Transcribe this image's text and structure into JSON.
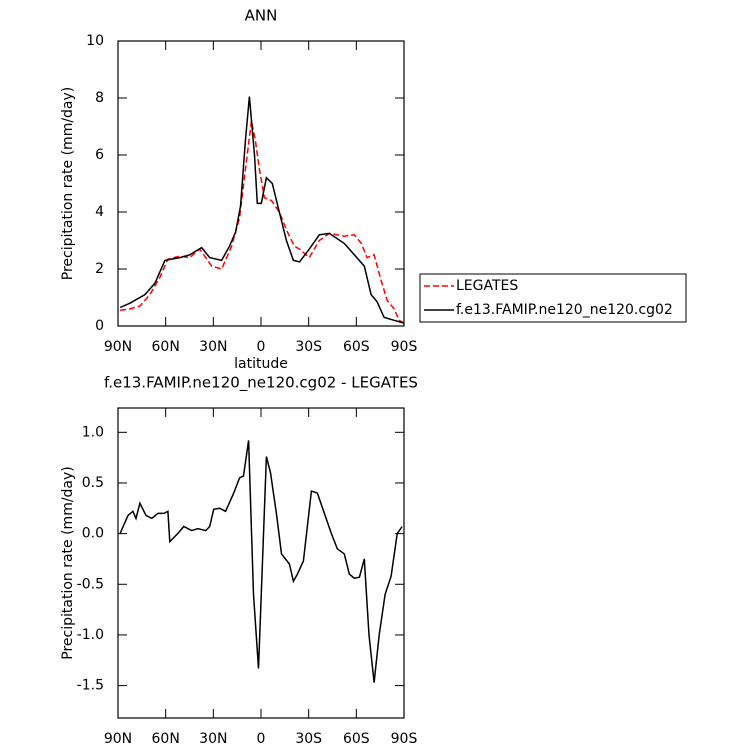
{
  "chart_data": [
    {
      "type": "line",
      "title": "ANN",
      "ylabel": "Precipitation rate (mm/day)",
      "xlabel": "latitude",
      "xlim": [
        90,
        -90
      ],
      "xticks": [
        {
          "value": 90,
          "label": "90N"
        },
        {
          "value": 60,
          "label": "60N"
        },
        {
          "value": 30,
          "label": "30N"
        },
        0,
        {
          "value": -30,
          "label": "30S"
        },
        {
          "value": -60,
          "label": "60S"
        },
        {
          "value": -90,
          "label": "90S"
        }
      ],
      "ylim": [
        0,
        10
      ],
      "yticks": [
        0,
        2,
        4,
        6,
        8,
        10
      ],
      "legend": "right",
      "series": [
        {
          "name": "LEGATES",
          "color": "#ff0000",
          "dash": true,
          "x": [
            88.7,
            82.5,
            76.2,
            69.9,
            63.7,
            58.6,
            51.1,
            44.8,
            38.6,
            31.0,
            24.8,
            18.5,
            13.5,
            9.8,
            6.0,
            3.5,
            1.0,
            -2.2,
            -6.6,
            -11.5,
            -16.6,
            -21.0,
            -24.2,
            -30.4,
            -36.7,
            -43.0,
            -52.4,
            -58.7,
            -63.1,
            -66.8,
            -71.2,
            -75.6,
            -79.4,
            -83.8,
            -86.9,
            -90
          ],
          "values": [
            0.55,
            0.6,
            0.7,
            1.1,
            1.7,
            2.35,
            2.45,
            2.4,
            2.7,
            2.1,
            2.0,
            2.8,
            3.8,
            5.5,
            7.2,
            6.5,
            5.5,
            4.5,
            4.4,
            4.0,
            3.3,
            2.8,
            2.7,
            2.4,
            3.0,
            3.25,
            3.15,
            3.2,
            2.9,
            2.4,
            2.5,
            1.6,
            0.9,
            0.6,
            0.2,
            0.1
          ]
        },
        {
          "name": "f.e13.FAMIP.ne120_ne120.cg02",
          "color": "#000000",
          "dash": false,
          "x": [
            88.7,
            82.5,
            73.1,
            66.8,
            60.5,
            51.1,
            44.8,
            37.3,
            32.3,
            24.8,
            19.8,
            16.0,
            12.9,
            9.8,
            7.3,
            4.1,
            2.3,
            -0.2,
            -3.4,
            -7.1,
            -11.5,
            -16.0,
            -20.4,
            -24.2,
            -30.4,
            -36.7,
            -43.0,
            -52.4,
            -58.7,
            -65.0,
            -69.3,
            -73.1,
            -77.5,
            -83.8,
            -90
          ],
          "values": [
            0.65,
            0.8,
            1.1,
            1.5,
            2.3,
            2.4,
            2.5,
            2.75,
            2.4,
            2.3,
            2.8,
            3.3,
            4.2,
            6.5,
            8.05,
            6.0,
            4.3,
            4.3,
            5.2,
            5.0,
            4.0,
            3.0,
            2.3,
            2.25,
            2.7,
            3.2,
            3.25,
            2.9,
            2.5,
            2.1,
            1.1,
            0.85,
            0.3,
            0.2,
            0.1
          ]
        }
      ]
    },
    {
      "type": "line",
      "title": "f.e13.FAMIP.ne120_ne120.cg02 - LEGATES",
      "ylabel": "Precipitation rate (mm/day)",
      "xlabel": "latitude",
      "xlim": [
        90,
        -90
      ],
      "xticks": [
        {
          "value": 90,
          "label": "90N"
        },
        {
          "value": 60,
          "label": "60N"
        },
        {
          "value": 30,
          "label": "30N"
        },
        0,
        {
          "value": -30,
          "label": "30S"
        },
        {
          "value": -60,
          "label": "60S"
        },
        {
          "value": -90,
          "label": "90S"
        }
      ],
      "ylim": [
        -1.82,
        1.24
      ],
      "yticks": [
        {
          "value": 1,
          "label": "1.0"
        },
        0.5,
        {
          "value": 0,
          "label": "0.0"
        },
        -0.5,
        {
          "value": -1,
          "label": "-1.0"
        },
        -1.5
      ],
      "series": [
        {
          "color": "#000000",
          "dash": false,
          "x": [
            88.7,
            83.7,
            80.6,
            78.7,
            76.2,
            72.4,
            68.7,
            64.9,
            61.1,
            58.6,
            57.4,
            52.4,
            48.6,
            43.6,
            39.8,
            34.8,
            32.3,
            29.8,
            26.0,
            22.3,
            17.2,
            13.5,
            11.0,
            7.8,
            4.7,
            1.6,
            -3.4,
            -6.0,
            -9.7,
            -12.9,
            -17.9,
            -20.4,
            -22.9,
            -26.7,
            -31.7,
            -35.5,
            -40.5,
            -44.3,
            -48.0,
            -52.4,
            -55.6,
            -58.7,
            -61.9,
            -65.0,
            -68.0,
            -71.2,
            -74.4,
            -78.1,
            -81.9,
            -85.7,
            -88.8
          ],
          "values": [
            0.0,
            0.18,
            0.22,
            0.15,
            0.3,
            0.18,
            0.15,
            0.2,
            0.2,
            0.22,
            -0.08,
            0.0,
            0.07,
            0.03,
            0.05,
            0.03,
            0.07,
            0.24,
            0.25,
            0.22,
            0.4,
            0.55,
            0.57,
            0.92,
            -0.6,
            -1.33,
            0.76,
            0.6,
            0.2,
            -0.2,
            -0.3,
            -0.47,
            -0.4,
            -0.27,
            0.42,
            0.4,
            0.17,
            0.0,
            -0.15,
            -0.2,
            -0.4,
            -0.44,
            -0.43,
            -0.25,
            -1.0,
            -1.47,
            -1.0,
            -0.6,
            -0.42,
            0.0,
            0.07
          ]
        }
      ]
    }
  ]
}
